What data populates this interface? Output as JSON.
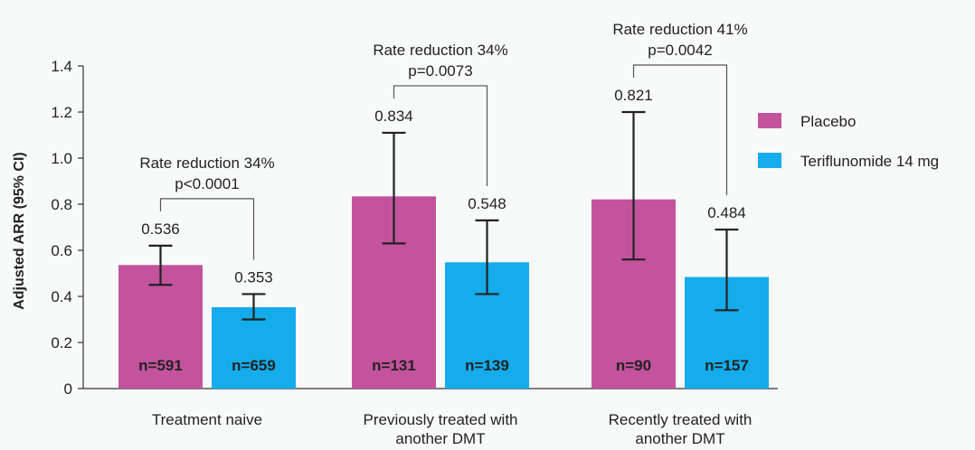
{
  "chart_data": {
    "type": "bar",
    "ylabel": "Adjusted ARR (95% CI)",
    "ylim": [
      0,
      1.4
    ],
    "yticks": [
      "0",
      "0.2",
      "0.4",
      "0.6",
      "0.8",
      "1.0",
      "1.2",
      "1.4"
    ],
    "grid": false,
    "legend_position": "right",
    "categories": [
      [
        "Treatment naive"
      ],
      [
        "Previously treated with",
        "another DMT"
      ],
      [
        "Recently treated with",
        "another DMT"
      ]
    ],
    "series": [
      {
        "name": "Placebo",
        "color": "#c4539e",
        "values": [
          0.536,
          0.834,
          0.821
        ],
        "ci_low": [
          0.45,
          0.63,
          0.56
        ],
        "ci_high": [
          0.62,
          1.11,
          1.2
        ],
        "value_labels": [
          "0.536",
          "0.834",
          "0.821"
        ],
        "n_labels": [
          "n=591",
          "n=131",
          "n=90"
        ]
      },
      {
        "name": "Teriflunomide 14 mg",
        "color": "#14acea",
        "values": [
          0.353,
          0.548,
          0.484
        ],
        "ci_low": [
          0.3,
          0.41,
          0.34
        ],
        "ci_high": [
          0.41,
          0.73,
          0.69
        ],
        "value_labels": [
          "0.353",
          "0.548",
          "0.484"
        ],
        "n_labels": [
          "n=659",
          "n=139",
          "n=157"
        ]
      }
    ],
    "annotations": [
      [
        "Rate reduction 34%",
        "p<0.0001"
      ],
      [
        "Rate reduction 34%",
        "p=0.0073"
      ],
      [
        "Rate reduction 41%",
        "p=0.0042"
      ]
    ]
  }
}
